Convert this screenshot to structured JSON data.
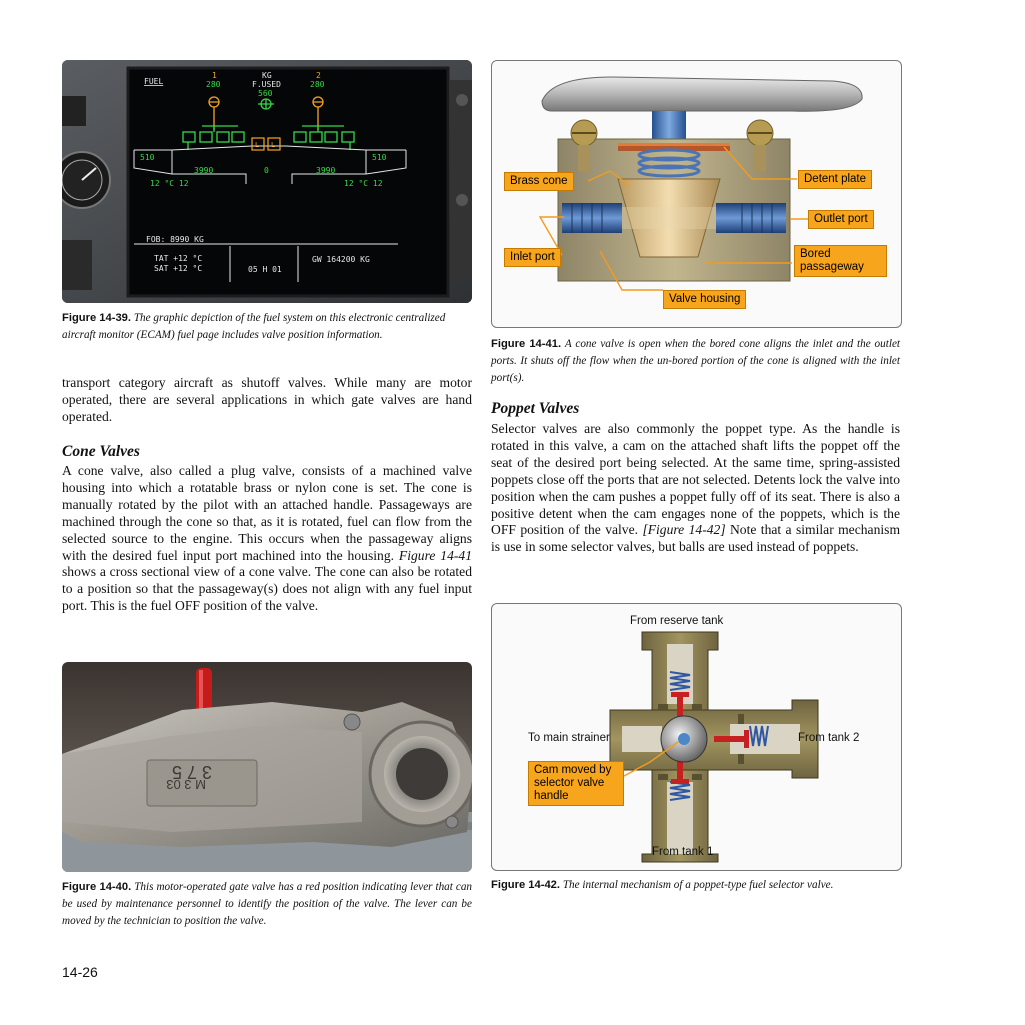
{
  "fig1439": {
    "screen": {
      "title": "FUEL",
      "unit": "KG",
      "fused": "F.USED",
      "eng1_num": "1",
      "eng2_num": "2",
      "eng1_used": "280",
      "eng2_used": "280",
      "total_used": "560",
      "left_outer": "510",
      "right_outer": "510",
      "left_inner": "3990",
      "center": "0",
      "right_inner": "3990",
      "left_temp": "12 °C 12",
      "right_temp": "12 °C 12",
      "fob": "FOB: 8990 KG",
      "tat": "TAT  +12  °C",
      "sat": "SAT  +12  °C",
      "time": "05 H 01",
      "gw": "GW 164200 KG",
      "xfeed_l": "L",
      "xfeed_r": "L"
    },
    "caption_label": "Figure 14-39.",
    "caption_text": "The graphic depiction of the fuel system on this electronic centralized aircraft monitor (ECAM) fuel page includes valve position information."
  },
  "col1": {
    "para1": "transport category aircraft as shutoff valves. While many are motor operated, there are several applications in which gate valves are hand operated.",
    "heading": "Cone Valves",
    "para2_a": "A cone valve, also called a plug valve, consists of a machined valve housing into which a rotatable brass or nylon cone is set. The cone is manually rotated by the pilot with an attached handle. Passageways are machined through the cone so that, as it is rotated, fuel can flow from the selected source to the engine. This occurs when the passageway aligns with the desired fuel input port machined into the housing.",
    "para2_ref": "Figure 14-41",
    "para2_b": " shows a cross sectional view of a cone valve. The cone can also be rotated to a position so that the passageway(s) does not align with any fuel input port. This is the fuel OFF position of the valve."
  },
  "fig1440": {
    "stamp1": "M 3 03",
    "stamp2": "3 7 5",
    "caption_label": "Figure 14-40.",
    "caption_text": "This motor-operated gate valve has a red position indicating lever that can be used by maintenance personnel to identify the position of the valve. The lever can be moved by the technician to position the valve."
  },
  "fig1441": {
    "labels": {
      "brass_cone": "Brass cone",
      "detent_plate": "Detent plate",
      "outlet_port": "Outlet port",
      "inlet_port": "Inlet port",
      "bored_passageway": "Bored passageway",
      "valve_housing": "Valve housing"
    },
    "caption_label": "Figure 14-41.",
    "caption_text": "A cone valve is open when the bored cone aligns the inlet and the outlet ports. It shuts off the flow when the un-bored portion of the cone is aligned with the inlet port(s)."
  },
  "col2": {
    "heading": "Poppet Valves",
    "para_a": "Selector valves are also commonly the poppet type. As the handle is rotated in this valve, a cam on the attached shaft lifts the poppet off the seat of the desired port being selected. At the same time, spring-assisted poppets close off the ports that are not selected. Detents lock the valve into position when the cam pushes a poppet fully off of its seat. There is also a positive detent when the cam engages none of the poppets, which is the OFF position of the valve.",
    "para_ref": "[Figure 14-42]",
    "para_b": " Note that a similar mechanism is use in some selector valves, but balls are used instead of poppets."
  },
  "fig1442": {
    "labels": {
      "reserve": "From reserve tank",
      "strainer": "To main strainer",
      "tank2": "From tank 2",
      "tank1": "From tank 1",
      "cam": "Cam moved by selector valve handle"
    },
    "caption_label": "Figure 14-42.",
    "caption_text": "The internal mechanism of a poppet-type fuel selector valve."
  },
  "page_number": "14-26"
}
